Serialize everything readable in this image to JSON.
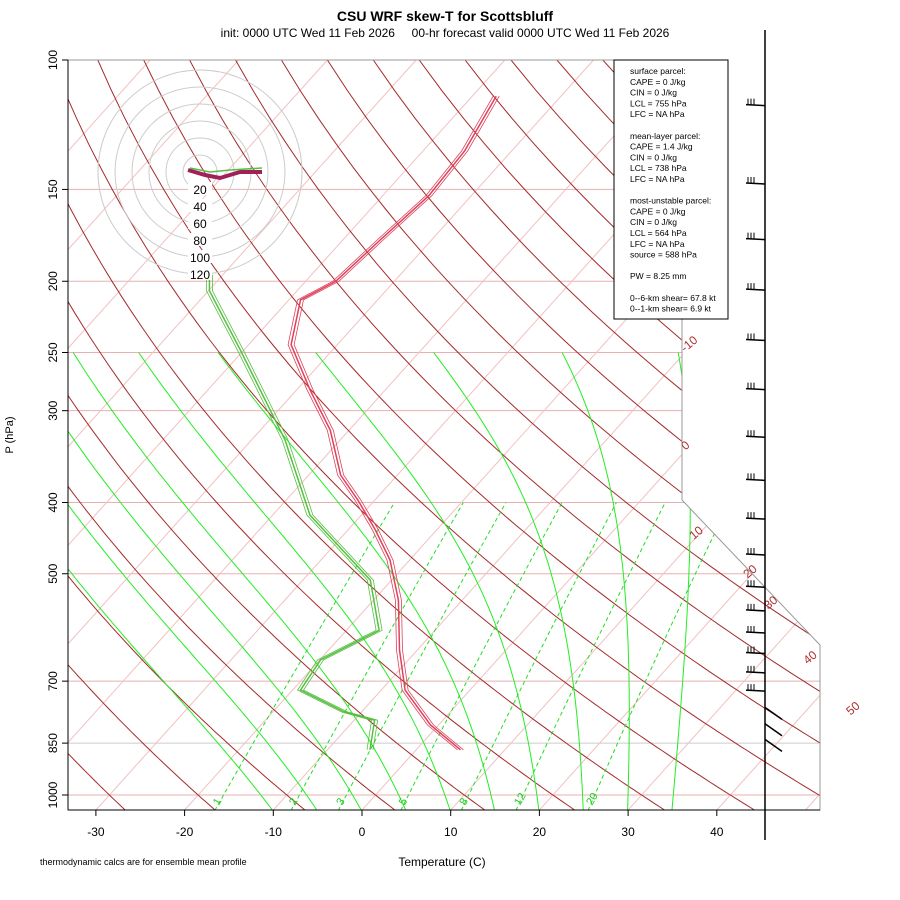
{
  "chart_data": {
    "type": "line",
    "title": "CSU WRF skew-T for Scottsbluff",
    "subtitle": "init: 0000 UTC Wed 11 Feb 2026     00-hr forecast valid 0000 UTC Wed 11 Feb 2026",
    "xlabel": "Temperature (C)",
    "ylabel": "P (hPa)",
    "xlim": [
      -33,
      45
    ],
    "ylim": [
      1050,
      100
    ],
    "x_ticks": [
      -30,
      -20,
      -10,
      0,
      10,
      20,
      30,
      40
    ],
    "p_ticks": [
      100,
      150,
      200,
      250,
      300,
      400,
      500,
      700,
      850,
      1000
    ],
    "isotherm_labels": [
      -10,
      0,
      10,
      20,
      30,
      40,
      50
    ],
    "mixing_ratio_labels": [
      1,
      2,
      3,
      5,
      8,
      12,
      20
    ],
    "hodograph_rings": [
      20,
      40,
      60,
      80,
      100,
      120
    ],
    "footnote": "thermodynamic calcs are for ensemble mean profile",
    "series": [
      {
        "name": "temperature",
        "color": "#e0405a",
        "p": [
          868,
          803,
          720,
          635,
          543,
          479,
          436,
          397,
          367,
          319,
          281,
          244,
          212,
          200,
          176,
          153,
          133,
          112
        ],
        "t": [
          5.0,
          -0.9,
          -7.3,
          -12.0,
          -17.2,
          -22.2,
          -26.9,
          -31.9,
          -36.4,
          -42.1,
          -48.5,
          -55.2,
          -58.7,
          -56.6,
          -55.8,
          -54.8,
          -55.3,
          -57.3
        ]
      },
      {
        "name": "dewpoint",
        "color": "#55c040",
        "p": [
          868,
          791,
          771,
          720,
          655,
          597,
          510,
          416,
          329,
          248,
          206,
          196
        ],
        "t": [
          -5.2,
          -7.7,
          -11.9,
          -19.1,
          -19.9,
          -16.3,
          -22.4,
          -35.8,
          -46.2,
          -60.4,
          -69.9,
          -71.5
        ]
      }
    ],
    "wind_barb_pressures": [
      115,
      147,
      175,
      205,
      240,
      280,
      325,
      372,
      420,
      470,
      520,
      560,
      600,
      640,
      680,
      720,
      760,
      800,
      840
    ],
    "stats": [
      "surface parcel:",
      "CAPE = 0 J/kg",
      "CIN = 0 J/kg",
      "LCL = 755 hPa",
      "LFC = NA hPa",
      "",
      "mean-layer parcel:",
      "CAPE = 1.4 J/kg",
      "CIN = 0 J/kg",
      "LCL = 738 hPa",
      "LFC = NA hPa",
      "",
      "most-unstable parcel:",
      "CAPE = 0 J/kg",
      "CIN = 0 J/kg",
      "LCL = 564 hPa",
      "LFC = NA hPa",
      "source = 588 hPa",
      "",
      "PW =  8.25 mm",
      "",
      "0--6-km shear= 67.8 kt",
      "0--1-km shear= 6.9 kt"
    ]
  }
}
